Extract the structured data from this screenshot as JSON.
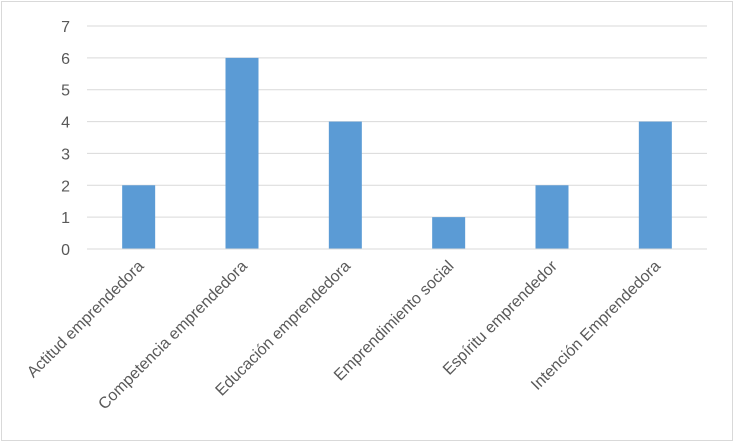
{
  "chart_data": {
    "type": "bar",
    "categories": [
      "Actitud emprendedora",
      "Competencia emprendedora",
      "Educación emprendedora",
      "Emprendimiento social",
      "Espíritu emprendedor",
      "Intención Emprendedora"
    ],
    "values": [
      2,
      6,
      4,
      1,
      2,
      4
    ],
    "ylim": [
      0,
      7
    ],
    "yticks": [
      "0",
      "1",
      "2",
      "3",
      "4",
      "5",
      "6",
      "7"
    ],
    "grid": true,
    "legend": "none",
    "bar_color": "#5b9bd5",
    "grid_color": "#d9d9d9",
    "axis_color": "#d9d9d9",
    "text_color": "#595959"
  }
}
